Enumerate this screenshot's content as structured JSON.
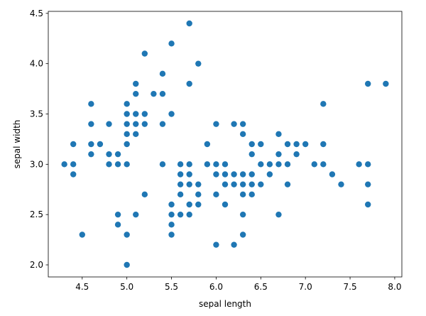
{
  "chart_data": {
    "type": "scatter",
    "xlabel": "sepal length",
    "ylabel": "sepal width",
    "xlim": [
      4.12,
      8.08
    ],
    "ylim": [
      1.88,
      4.52
    ],
    "xticks": [
      4.5,
      5.0,
      5.5,
      6.0,
      6.5,
      7.0,
      7.5,
      8.0
    ],
    "xtick_labels": [
      "4.5",
      "5.0",
      "5.5",
      "6.0",
      "6.5",
      "7.0",
      "7.5",
      "8.0"
    ],
    "yticks": [
      2.0,
      2.5,
      3.0,
      3.5,
      4.0,
      4.5
    ],
    "ytick_labels": [
      "2.0",
      "2.5",
      "3.0",
      "3.5",
      "4.0",
      "4.5"
    ],
    "grid": false,
    "marker_color": "#1f77b4",
    "points": [
      [
        4.3,
        3.0
      ],
      [
        4.4,
        2.9
      ],
      [
        4.4,
        3.0
      ],
      [
        4.4,
        3.2
      ],
      [
        4.5,
        2.3
      ],
      [
        4.6,
        3.1
      ],
      [
        4.6,
        3.2
      ],
      [
        4.6,
        3.4
      ],
      [
        4.6,
        3.6
      ],
      [
        4.7,
        3.2
      ],
      [
        4.8,
        3.0
      ],
      [
        4.8,
        3.1
      ],
      [
        4.8,
        3.4
      ],
      [
        4.9,
        2.4
      ],
      [
        4.9,
        2.5
      ],
      [
        4.9,
        3.0
      ],
      [
        4.9,
        3.1
      ],
      [
        5.0,
        2.0
      ],
      [
        5.0,
        2.3
      ],
      [
        5.0,
        3.0
      ],
      [
        5.0,
        3.2
      ],
      [
        5.0,
        3.3
      ],
      [
        5.0,
        3.4
      ],
      [
        5.0,
        3.5
      ],
      [
        5.0,
        3.6
      ],
      [
        5.1,
        2.5
      ],
      [
        5.1,
        3.3
      ],
      [
        5.1,
        3.4
      ],
      [
        5.1,
        3.5
      ],
      [
        5.1,
        3.7
      ],
      [
        5.1,
        3.8
      ],
      [
        5.2,
        2.7
      ],
      [
        5.2,
        3.4
      ],
      [
        5.2,
        3.5
      ],
      [
        5.2,
        4.1
      ],
      [
        5.3,
        3.7
      ],
      [
        5.4,
        3.0
      ],
      [
        5.4,
        3.4
      ],
      [
        5.4,
        3.7
      ],
      [
        5.4,
        3.9
      ],
      [
        5.5,
        2.3
      ],
      [
        5.5,
        2.4
      ],
      [
        5.5,
        2.5
      ],
      [
        5.5,
        2.6
      ],
      [
        5.5,
        3.5
      ],
      [
        5.5,
        4.2
      ],
      [
        5.6,
        2.5
      ],
      [
        5.6,
        2.7
      ],
      [
        5.6,
        2.8
      ],
      [
        5.6,
        2.9
      ],
      [
        5.6,
        3.0
      ],
      [
        5.7,
        2.5
      ],
      [
        5.7,
        2.6
      ],
      [
        5.7,
        2.8
      ],
      [
        5.7,
        2.9
      ],
      [
        5.7,
        3.0
      ],
      [
        5.7,
        3.8
      ],
      [
        5.7,
        4.4
      ],
      [
        5.8,
        2.6
      ],
      [
        5.8,
        2.7
      ],
      [
        5.8,
        2.8
      ],
      [
        5.8,
        4.0
      ],
      [
        5.9,
        3.0
      ],
      [
        5.9,
        3.2
      ],
      [
        6.0,
        2.2
      ],
      [
        6.0,
        2.7
      ],
      [
        6.0,
        2.9
      ],
      [
        6.0,
        3.0
      ],
      [
        6.0,
        3.4
      ],
      [
        6.1,
        2.6
      ],
      [
        6.1,
        2.8
      ],
      [
        6.1,
        2.9
      ],
      [
        6.1,
        3.0
      ],
      [
        6.2,
        2.2
      ],
      [
        6.2,
        2.8
      ],
      [
        6.2,
        2.9
      ],
      [
        6.2,
        3.4
      ],
      [
        6.3,
        2.3
      ],
      [
        6.3,
        2.5
      ],
      [
        6.3,
        2.7
      ],
      [
        6.3,
        2.8
      ],
      [
        6.3,
        2.9
      ],
      [
        6.3,
        3.3
      ],
      [
        6.3,
        3.4
      ],
      [
        6.4,
        2.7
      ],
      [
        6.4,
        2.8
      ],
      [
        6.4,
        2.9
      ],
      [
        6.4,
        3.1
      ],
      [
        6.4,
        3.2
      ],
      [
        6.5,
        2.8
      ],
      [
        6.5,
        3.0
      ],
      [
        6.5,
        3.2
      ],
      [
        6.6,
        2.9
      ],
      [
        6.6,
        3.0
      ],
      [
        6.7,
        2.5
      ],
      [
        6.7,
        3.0
      ],
      [
        6.7,
        3.1
      ],
      [
        6.7,
        3.3
      ],
      [
        6.8,
        2.8
      ],
      [
        6.8,
        3.0
      ],
      [
        6.8,
        3.2
      ],
      [
        6.9,
        3.1
      ],
      [
        6.9,
        3.2
      ],
      [
        7.0,
        3.2
      ],
      [
        7.1,
        3.0
      ],
      [
        7.2,
        3.0
      ],
      [
        7.2,
        3.2
      ],
      [
        7.2,
        3.6
      ],
      [
        7.3,
        2.9
      ],
      [
        7.4,
        2.8
      ],
      [
        7.6,
        3.0
      ],
      [
        7.7,
        2.6
      ],
      [
        7.7,
        2.8
      ],
      [
        7.7,
        3.0
      ],
      [
        7.7,
        3.8
      ],
      [
        7.9,
        3.8
      ]
    ]
  }
}
